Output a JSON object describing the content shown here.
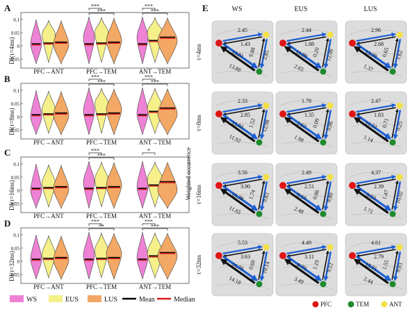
{
  "left": {
    "panels": [
      {
        "letter": "A",
        "ylabel": "DI(τ=4ms)",
        "yticks": [
          "0.1",
          "0.05",
          "0",
          "-0.05"
        ],
        "groups": [
          {
            "label": "PFC→ANT",
            "sig": []
          },
          {
            "label": "PFC→TEM",
            "sig": [
              "***",
              "***"
            ]
          },
          {
            "label": "ANT→TEM",
            "sig": [
              "***",
              "***"
            ]
          }
        ]
      },
      {
        "letter": "B",
        "ylabel": "DI(τ=8ms)",
        "yticks": [
          "0.1",
          "0.05",
          "0",
          "-0.05"
        ],
        "groups": [
          {
            "label": "PFC→ANT",
            "sig": []
          },
          {
            "label": "PFC→TEM",
            "sig": [
              "***",
              "***"
            ]
          },
          {
            "label": "ANT→TEM",
            "sig": [
              "***",
              "***"
            ]
          }
        ]
      },
      {
        "letter": "C",
        "ylabel": "DI(τ=16ms)",
        "yticks": [
          "0.1",
          "0.05",
          "0",
          "-0.05"
        ],
        "groups": [
          {
            "label": "PFC→ANT",
            "sig": []
          },
          {
            "label": "PFC→TEM",
            "sig": [
              "***",
              "***"
            ]
          },
          {
            "label": "ANT→TEM",
            "sig": [
              "*"
            ]
          }
        ]
      },
      {
        "letter": "D",
        "ylabel": "DI(τ=32ms)",
        "yticks": [
          "0.1",
          "0.05",
          "0",
          "-0.05"
        ],
        "groups": [
          {
            "label": "PFC→ANT",
            "sig": []
          },
          {
            "label": "PFC→TEM",
            "sig": [
              "***",
              "**"
            ]
          },
          {
            "label": "ANT→TEM",
            "sig": [
              "***",
              "***"
            ]
          }
        ]
      }
    ],
    "legend": [
      {
        "kind": "swatch",
        "color": "#ee82d4",
        "label": "WS"
      },
      {
        "kind": "swatch",
        "color": "#f5f08a",
        "label": "EUS"
      },
      {
        "kind": "swatch",
        "color": "#f3a865",
        "label": "LUS"
      },
      {
        "kind": "line",
        "color": "#000000",
        "label": "Mean"
      },
      {
        "kind": "line",
        "color": "#d91a1a",
        "label": "Median"
      }
    ],
    "colors": {
      "WS": "#ee82d4",
      "EUS": "#f5f08a",
      "LUS": "#f3a865"
    }
  },
  "right": {
    "letter": "E",
    "columns": [
      "WS",
      "EUS",
      "LUS"
    ],
    "ylabel": "Weighted occurrence",
    "rows": [
      {
        "label": "τ=4ms",
        "cells": [
          {
            "pa": "2.45",
            "ap": "1.43",
            "pt": "13.88",
            "tp": "13.81",
            "at": "9.88",
            "ta": "2.85"
          },
          {
            "pa": "2.44",
            "ap": "1.88",
            "pt": "2.65",
            "tp": "11.90",
            "at": "0.20",
            "ta": "12.09"
          },
          {
            "pa": "2.96",
            "ap": "2.68",
            "pt": "1.37",
            "tp": "13.39",
            "at": "0.65",
            "ta": "1.62"
          }
        ]
      },
      {
        "label": "τ=8ms",
        "cells": [
          {
            "pa": "2.33",
            "ap": "2.85",
            "pt": "11.92",
            "tp": "11.82",
            "at": "1.52",
            "ta": "12.98"
          },
          {
            "pa": "1.78",
            "ap": "1.35",
            "pt": "1.98",
            "tp": "2.62",
            "at": "0.09",
            "ta": "0.96"
          },
          {
            "pa": "2.47",
            "ap": "1.83",
            "pt": "1.14",
            "tp": "11.22",
            "at": "0.71",
            "ta": "0.25"
          }
        ]
      },
      {
        "label": "τ=16ms",
        "cells": [
          {
            "pa": "3.56",
            "ap": "3.90",
            "pt": "11.65",
            "tp": "11.38",
            "at": "1.74",
            "ta": "9.83"
          },
          {
            "pa": "2.49",
            "ap": "2.51",
            "pt": "2.48",
            "tp": "9.10",
            "at": "0.86",
            "ta": "8.80"
          },
          {
            "pa": "4.37",
            "ap": "2.39",
            "pt": "1.71",
            "tp": "9.53",
            "at": "1.47",
            "ta": "10.02"
          }
        ]
      },
      {
        "label": "τ=32ms",
        "cells": [
          {
            "pa": "5.53",
            "ap": "3.63",
            "pt": "14.18",
            "tp": "11.70",
            "at": "0.69",
            "ta": "10.14"
          },
          {
            "pa": "4.49",
            "ap": "3.11",
            "pt": "3.49",
            "tp": "8.70",
            "at": "1.19",
            "ta": "9.12"
          },
          {
            "pa": "4.61",
            "ap": "2.79",
            "pt": "2.44",
            "tp": "15.21",
            "at": "1.55",
            "ta": "9.93"
          }
        ]
      }
    ],
    "legend": [
      {
        "color": "#e01515",
        "label": "PFC"
      },
      {
        "color": "#1f8a2e",
        "label": "TEM"
      },
      {
        "color": "#f2e045",
        "label": "ANT"
      }
    ]
  }
}
